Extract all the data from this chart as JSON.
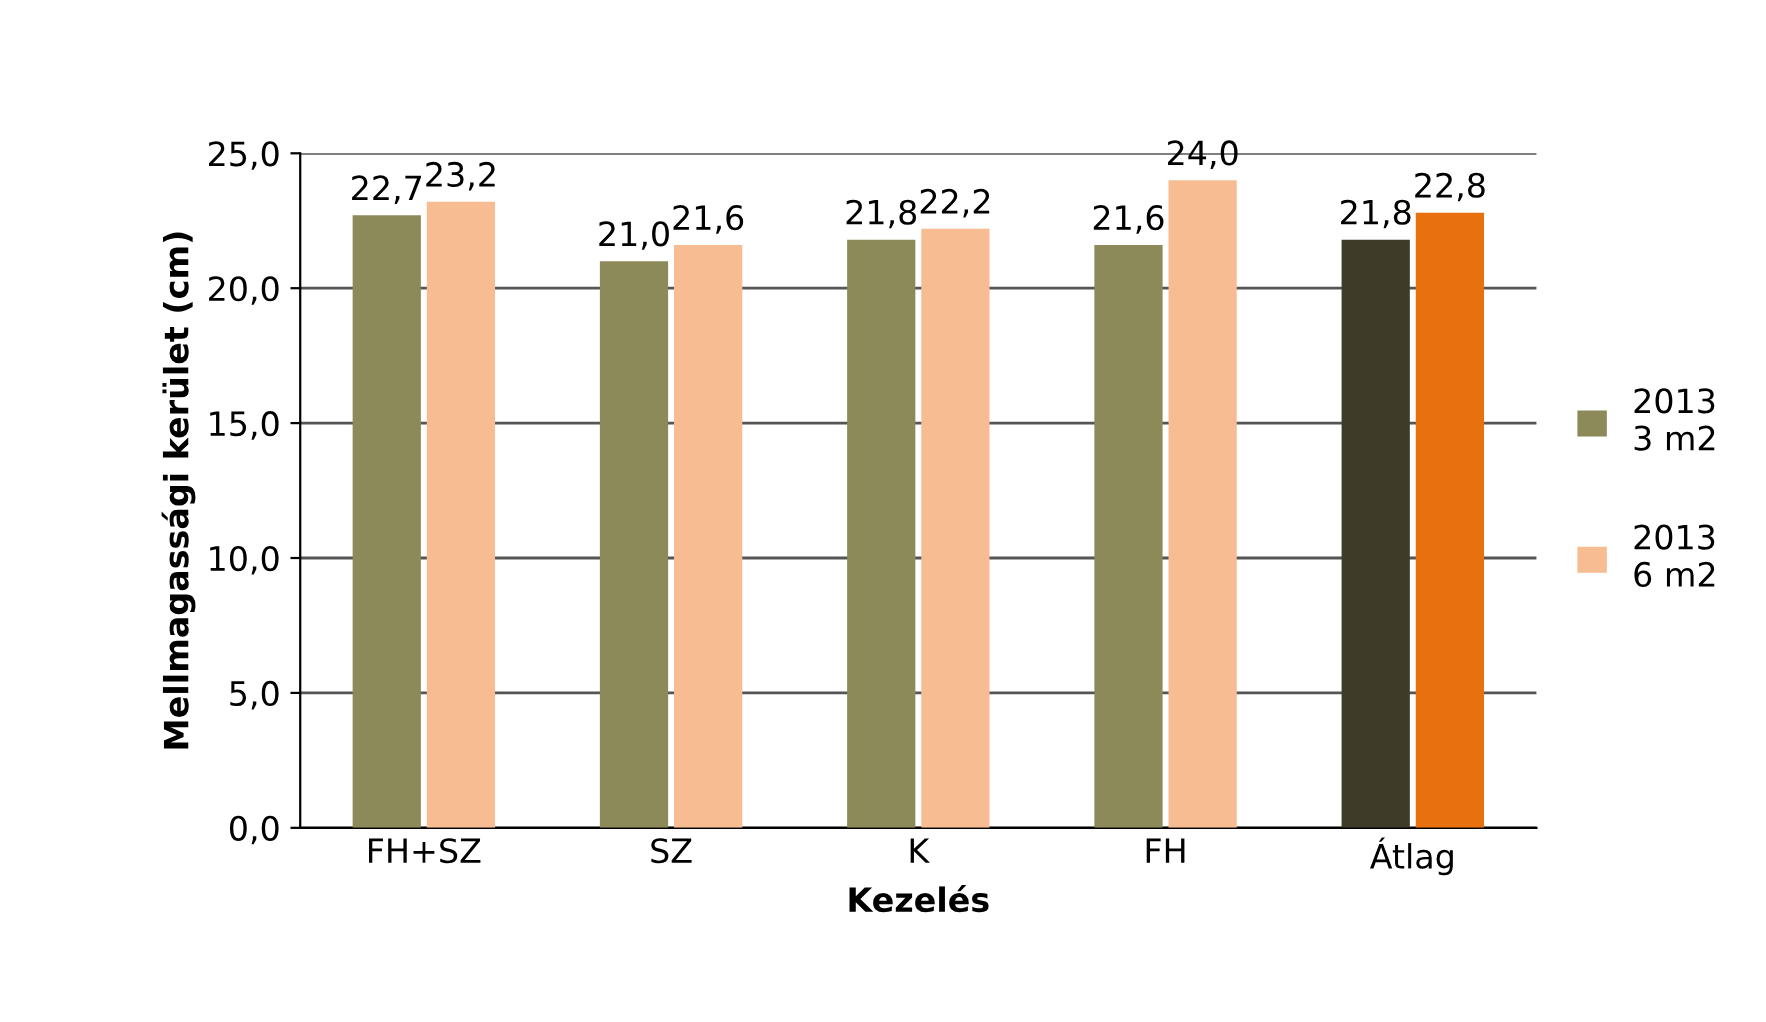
{
  "chart_data": {
    "type": "bar",
    "xlabel": "Kezelés",
    "ylabel": "Mellmagassági kerület (cm)",
    "categories": [
      "FH+SZ",
      "SZ",
      "K",
      "FH",
      "Átlag"
    ],
    "series": [
      {
        "name": "2013\n3 m2",
        "color": "#8c8a58",
        "colors": [
          "#8c8a58",
          "#8c8a58",
          "#8c8a58",
          "#8c8a58",
          "#3e3b28"
        ],
        "values": [
          22.7,
          21.0,
          21.8,
          21.6,
          21.8
        ],
        "value_labels": [
          "22,7",
          "21,0",
          "21,8",
          "21,6",
          "21,8"
        ]
      },
      {
        "name": "2013\n6 m2",
        "color": "#f8bc92",
        "colors": [
          "#f8bc92",
          "#f8bc92",
          "#f8bc92",
          "#f8bc92",
          "#e8700e"
        ],
        "values": [
          23.2,
          21.6,
          22.2,
          24.0,
          22.8
        ],
        "value_labels": [
          "23,2",
          "21,6",
          "22,2",
          "24,0",
          "22,8"
        ]
      }
    ],
    "ylim": [
      0,
      25
    ],
    "yticks": [
      {
        "value": 0,
        "label": "0,0"
      },
      {
        "value": 5,
        "label": "5,0"
      },
      {
        "value": 10,
        "label": "10,0"
      },
      {
        "value": 15,
        "label": "15,0"
      },
      {
        "value": 20,
        "label": "20,0"
      },
      {
        "value": 25,
        "label": "25,0"
      }
    ],
    "grid": "y",
    "legend": "right"
  }
}
